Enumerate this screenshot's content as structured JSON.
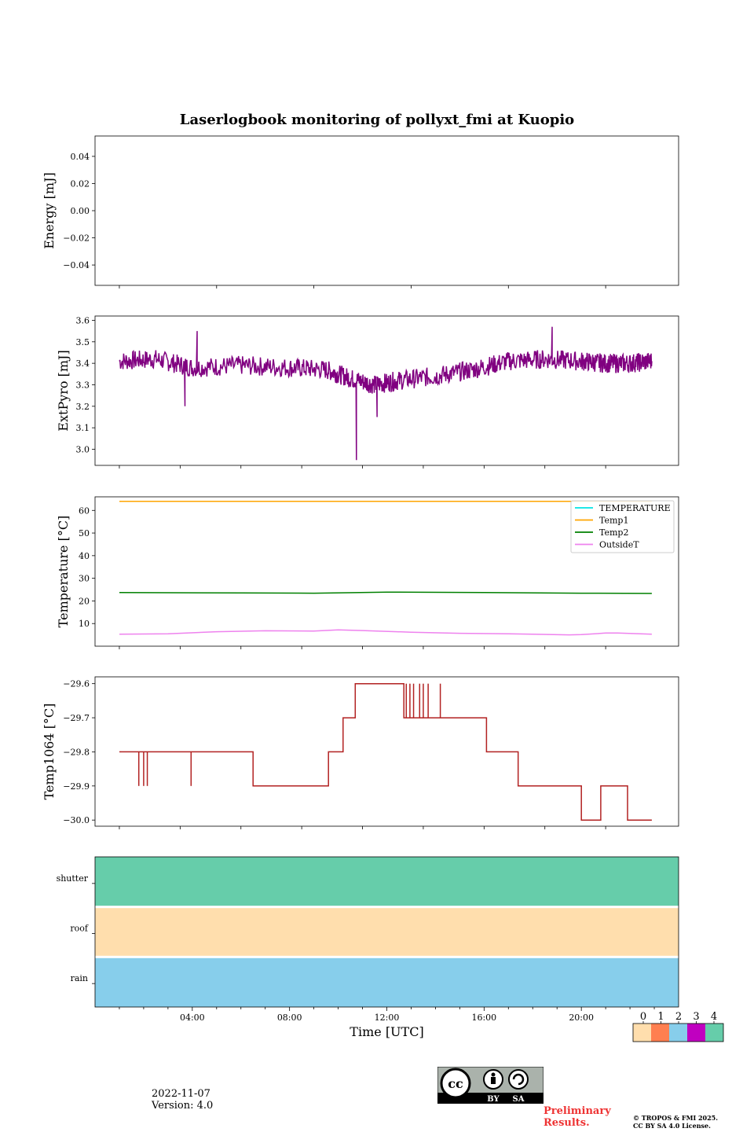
{
  "title": "Laserlogbook monitoring of pollyxt_fmi at Kuopio",
  "footer": {
    "date": "2022-11-07",
    "version": "Version: 4.0",
    "preliminary_1": "Preliminary",
    "preliminary_2": "Results.",
    "copyright_1": "© TROPOS & FMI 2025.",
    "copyright_2": "CC BY SA 4.0 License.",
    "license_badge": {
      "cc": "cc",
      "by": "BY",
      "sa": "SA"
    }
  },
  "chart_data": [
    {
      "id": "energy",
      "type": "line",
      "ylabel": "Energy [mJ]",
      "ylim": [
        -0.055,
        0.055
      ],
      "yticks": [
        0.04,
        0.02,
        0.0,
        -0.02,
        -0.04
      ],
      "ytick_labels": [
        "0.04",
        "0.02",
        "0.00",
        "−0.02",
        "−0.04"
      ],
      "series": []
    },
    {
      "id": "extpyro",
      "type": "line",
      "ylabel": "ExtPyro [mJ]",
      "ylim": [
        2.925,
        3.62
      ],
      "yticks": [
        3.6,
        3.5,
        3.4,
        3.3,
        3.2,
        3.1,
        3.0
      ],
      "ytick_labels": [
        "3.6",
        "3.5",
        "3.4",
        "3.3",
        "3.2",
        "3.1",
        "3.0"
      ],
      "series": [
        {
          "name": "ExtPyro",
          "color": "#800080",
          "x_hours": [
            1.0,
            2.5,
            4.0,
            6.0,
            8.0,
            9.5,
            10.5,
            11.5,
            12.5,
            14.0,
            15.5,
            17.0,
            18.5,
            20.0,
            21.0,
            22.0,
            22.9
          ],
          "y": [
            3.41,
            3.42,
            3.38,
            3.39,
            3.38,
            3.37,
            3.33,
            3.3,
            3.32,
            3.34,
            3.37,
            3.41,
            3.42,
            3.41,
            3.4,
            3.4,
            3.41
          ],
          "noise": 0.045,
          "spikes": [
            {
              "x": 10.75,
              "y": 2.95
            },
            {
              "x": 3.7,
              "y": 3.2
            },
            {
              "x": 4.2,
              "y": 3.55
            },
            {
              "x": 18.8,
              "y": 3.57
            },
            {
              "x": 11.6,
              "y": 3.15
            }
          ]
        }
      ]
    },
    {
      "id": "temperature",
      "type": "line",
      "ylabel": "Temperature [°C]",
      "ylim": [
        0,
        66
      ],
      "yticks": [
        60,
        50,
        40,
        30,
        20,
        10
      ],
      "ytick_labels": [
        "60",
        "50",
        "40",
        "30",
        "20",
        "10"
      ],
      "legend_position": "top-right",
      "series": [
        {
          "name": "TEMPERATURE",
          "color": "#00e5e5",
          "x_hours": [],
          "y": []
        },
        {
          "name": "Temp1",
          "color": "#ffa500",
          "x_hours": [
            1.0,
            22.9
          ],
          "y": [
            64.0,
            64.0
          ]
        },
        {
          "name": "Temp2",
          "color": "#008000",
          "x_hours": [
            1.0,
            6.0,
            9.0,
            12.0,
            16.0,
            20.0,
            22.9
          ],
          "y": [
            23.7,
            23.5,
            23.4,
            23.9,
            23.7,
            23.4,
            23.3
          ]
        },
        {
          "name": "OutsideT",
          "color": "#ee82ee",
          "x_hours": [
            1.0,
            3.0,
            5.0,
            7.0,
            9.0,
            10.0,
            11.0,
            13.0,
            15.0,
            17.0,
            18.0,
            19.5,
            20.0,
            21.0,
            21.5,
            22.9
          ],
          "y": [
            5.3,
            5.5,
            6.4,
            6.8,
            6.7,
            7.2,
            6.9,
            6.2,
            5.7,
            5.5,
            5.3,
            5.0,
            5.1,
            5.8,
            5.8,
            5.3
          ]
        }
      ]
    },
    {
      "id": "temp1064",
      "type": "line",
      "ylabel": "Temp1064 [°C]",
      "ylim": [
        -30.018,
        -29.58
      ],
      "yticks": [
        -29.6,
        -29.7,
        -29.8,
        -29.9,
        -30.0
      ],
      "ytick_labels": [
        "−29.6",
        "−29.7",
        "−29.8",
        "−29.9",
        "−30.0"
      ],
      "series": [
        {
          "name": "Temp1064",
          "color": "#b22222",
          "x_hours": [
            1.0,
            6.5,
            6.5,
            9.6,
            9.6,
            10.2,
            10.2,
            10.7,
            10.7,
            12.7,
            12.7,
            16.1,
            16.1,
            17.4,
            17.4,
            20.0,
            20.0,
            20.8,
            20.8,
            21.9,
            21.9,
            22.9
          ],
          "y": [
            -29.8,
            -29.8,
            -29.9,
            -29.9,
            -29.8,
            -29.8,
            -29.7,
            -29.7,
            -29.6,
            -29.6,
            -29.7,
            -29.7,
            -29.8,
            -29.8,
            -29.9,
            -29.9,
            -30.0,
            -30.0,
            -29.9,
            -29.9,
            -30.0,
            -30.0
          ],
          "spikes": [
            {
              "x": 1.8,
              "y": -29.9
            },
            {
              "x": 2.0,
              "y": -29.9
            },
            {
              "x": 2.15,
              "y": -29.9
            },
            {
              "x": 3.95,
              "y": -29.9
            },
            {
              "x": 6.65,
              "y": -29.9
            },
            {
              "x": 12.8,
              "y": -29.6
            },
            {
              "x": 12.95,
              "y": -29.6
            },
            {
              "x": 13.1,
              "y": -29.6
            },
            {
              "x": 13.35,
              "y": -29.6
            },
            {
              "x": 13.5,
              "y": -29.6
            },
            {
              "x": 13.7,
              "y": -29.6
            },
            {
              "x": 14.2,
              "y": -29.6
            },
            {
              "x": 16.3,
              "y": -29.8
            },
            {
              "x": 17.6,
              "y": -29.9
            },
            {
              "x": 20.1,
              "y": -30.0
            }
          ]
        }
      ]
    },
    {
      "id": "status",
      "type": "heatmap",
      "rows": [
        "shutter",
        "roof",
        "rain"
      ],
      "row_values": [
        4,
        0,
        2
      ],
      "xlabel": "Time [UTC]",
      "xlim_hours": [
        0,
        24
      ],
      "xticks_hours": [
        4,
        8,
        12,
        16,
        20
      ],
      "xtick_labels": [
        "04:00",
        "08:00",
        "12:00",
        "16:00",
        "20:00"
      ],
      "colorbar": {
        "ticks": [
          "0",
          "1",
          "2",
          "3",
          "4"
        ],
        "colors": [
          "#ffdead",
          "#ff7f50",
          "#87ceeb",
          "#c000c0",
          "#66cdaa"
        ]
      }
    }
  ]
}
